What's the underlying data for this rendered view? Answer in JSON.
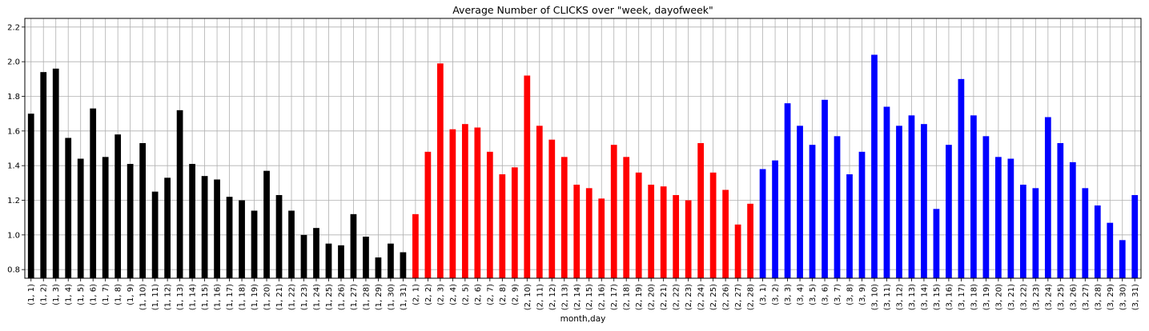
{
  "chart_data": {
    "type": "bar",
    "title": "Average Number of CLICKS over \"week, dayofweek\"",
    "xlabel": "month,day",
    "ylabel": "",
    "ylim": [
      0.75,
      2.25
    ],
    "yticks": [
      "0.8",
      "1.0",
      "1.2",
      "1.4",
      "1.6",
      "1.8",
      "2.0",
      "2.2"
    ],
    "grid": true,
    "colors": {
      "1": "#000000",
      "2": "#ff0000",
      "3": "#0000ff"
    },
    "categories": [
      "(1, 1)",
      "(1, 2)",
      "(1, 3)",
      "(1, 4)",
      "(1, 5)",
      "(1, 6)",
      "(1, 7)",
      "(1, 8)",
      "(1, 9)",
      "(1, 10)",
      "(1, 11)",
      "(1, 12)",
      "(1, 13)",
      "(1, 14)",
      "(1, 15)",
      "(1, 16)",
      "(1, 17)",
      "(1, 18)",
      "(1, 19)",
      "(1, 20)",
      "(1, 21)",
      "(1, 22)",
      "(1, 23)",
      "(1, 24)",
      "(1, 25)",
      "(1, 26)",
      "(1, 27)",
      "(1, 28)",
      "(1, 29)",
      "(1, 30)",
      "(1, 31)",
      "(2, 1)",
      "(2, 2)",
      "(2, 3)",
      "(2, 4)",
      "(2, 5)",
      "(2, 6)",
      "(2, 7)",
      "(2, 8)",
      "(2, 9)",
      "(2, 10)",
      "(2, 11)",
      "(2, 12)",
      "(2, 13)",
      "(2, 14)",
      "(2, 15)",
      "(2, 16)",
      "(2, 17)",
      "(2, 18)",
      "(2, 19)",
      "(2, 20)",
      "(2, 21)",
      "(2, 22)",
      "(2, 23)",
      "(2, 24)",
      "(2, 25)",
      "(2, 26)",
      "(2, 27)",
      "(2, 28)",
      "(3, 1)",
      "(3, 2)",
      "(3, 3)",
      "(3, 4)",
      "(3, 5)",
      "(3, 6)",
      "(3, 7)",
      "(3, 8)",
      "(3, 9)",
      "(3, 10)",
      "(3, 11)",
      "(3, 12)",
      "(3, 13)",
      "(3, 14)",
      "(3, 15)",
      "(3, 16)",
      "(3, 17)",
      "(3, 18)",
      "(3, 19)",
      "(3, 20)",
      "(3, 21)",
      "(3, 22)",
      "(3, 23)",
      "(3, 24)",
      "(3, 25)",
      "(3, 26)",
      "(3, 27)",
      "(3, 28)",
      "(3, 29)",
      "(3, 30)",
      "(3, 31)"
    ],
    "values": [
      1.7,
      1.94,
      1.96,
      1.56,
      1.44,
      1.73,
      1.45,
      1.58,
      1.41,
      1.53,
      1.25,
      1.33,
      1.72,
      1.41,
      1.34,
      1.32,
      1.22,
      1.2,
      1.14,
      1.37,
      1.23,
      1.14,
      1.0,
      1.04,
      0.95,
      0.94,
      1.12,
      0.99,
      0.87,
      0.95,
      0.9,
      1.12,
      1.48,
      1.99,
      1.61,
      1.64,
      1.62,
      1.48,
      1.35,
      1.39,
      1.92,
      1.63,
      1.55,
      1.45,
      1.29,
      1.27,
      1.21,
      1.52,
      1.45,
      1.36,
      1.29,
      1.28,
      1.23,
      1.2,
      1.53,
      1.36,
      1.26,
      1.06,
      1.18,
      1.38,
      1.43,
      1.76,
      1.63,
      1.52,
      1.78,
      1.57,
      1.35,
      1.48,
      2.04,
      1.74,
      1.63,
      1.69,
      1.64,
      1.15,
      1.52,
      1.9,
      1.69,
      1.57,
      1.45,
      1.44,
      1.29,
      1.27,
      1.68,
      1.53,
      1.42,
      1.27,
      1.17,
      1.07,
      0.97,
      1.23
    ]
  }
}
